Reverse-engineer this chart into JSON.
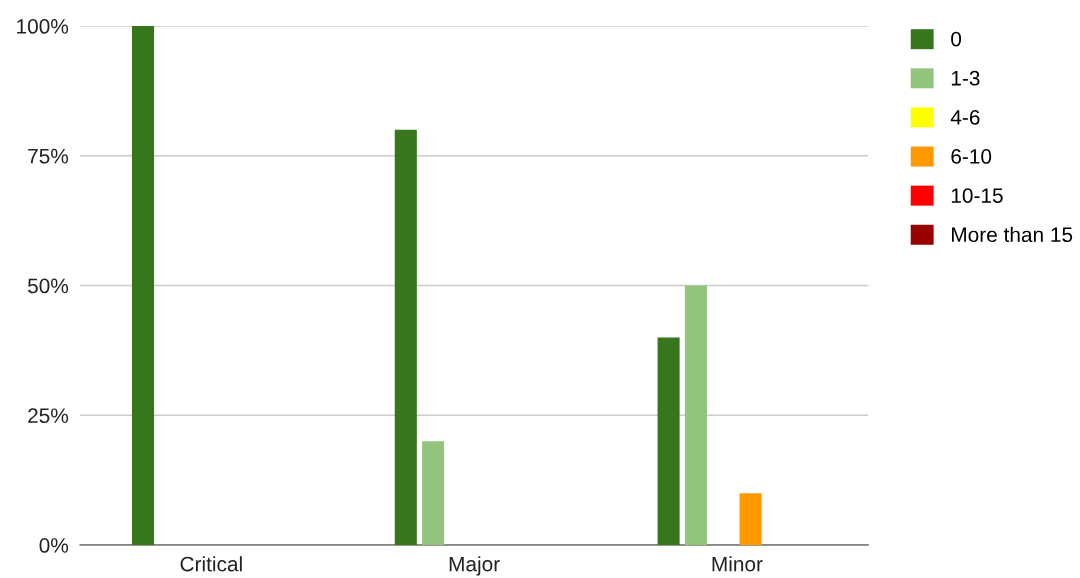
{
  "chart_data": {
    "type": "bar",
    "categories": [
      "Critical",
      "Major",
      "Minor"
    ],
    "series": [
      {
        "name": "0",
        "color": "#38761d",
        "values": [
          100,
          80,
          40
        ]
      },
      {
        "name": "1-3",
        "color": "#93c47d",
        "values": [
          0,
          20,
          50
        ]
      },
      {
        "name": "4-6",
        "color": "#ffff00",
        "values": [
          0,
          0,
          0
        ]
      },
      {
        "name": "6-10",
        "color": "#ff9900",
        "values": [
          0,
          0,
          10
        ]
      },
      {
        "name": "10-15",
        "color": "#ff0000",
        "values": [
          0,
          0,
          0
        ]
      },
      {
        "name": "More than 15",
        "color": "#990000",
        "values": [
          0,
          0,
          0
        ]
      }
    ],
    "ylim": [
      0,
      100
    ],
    "yticks": [
      {
        "value": 0,
        "label": "0%"
      },
      {
        "value": 25,
        "label": "25%"
      },
      {
        "value": 50,
        "label": "50%"
      },
      {
        "value": 75,
        "label": "75%"
      },
      {
        "value": 100,
        "label": "100%"
      }
    ],
    "grid": "y",
    "legend": "top right"
  }
}
